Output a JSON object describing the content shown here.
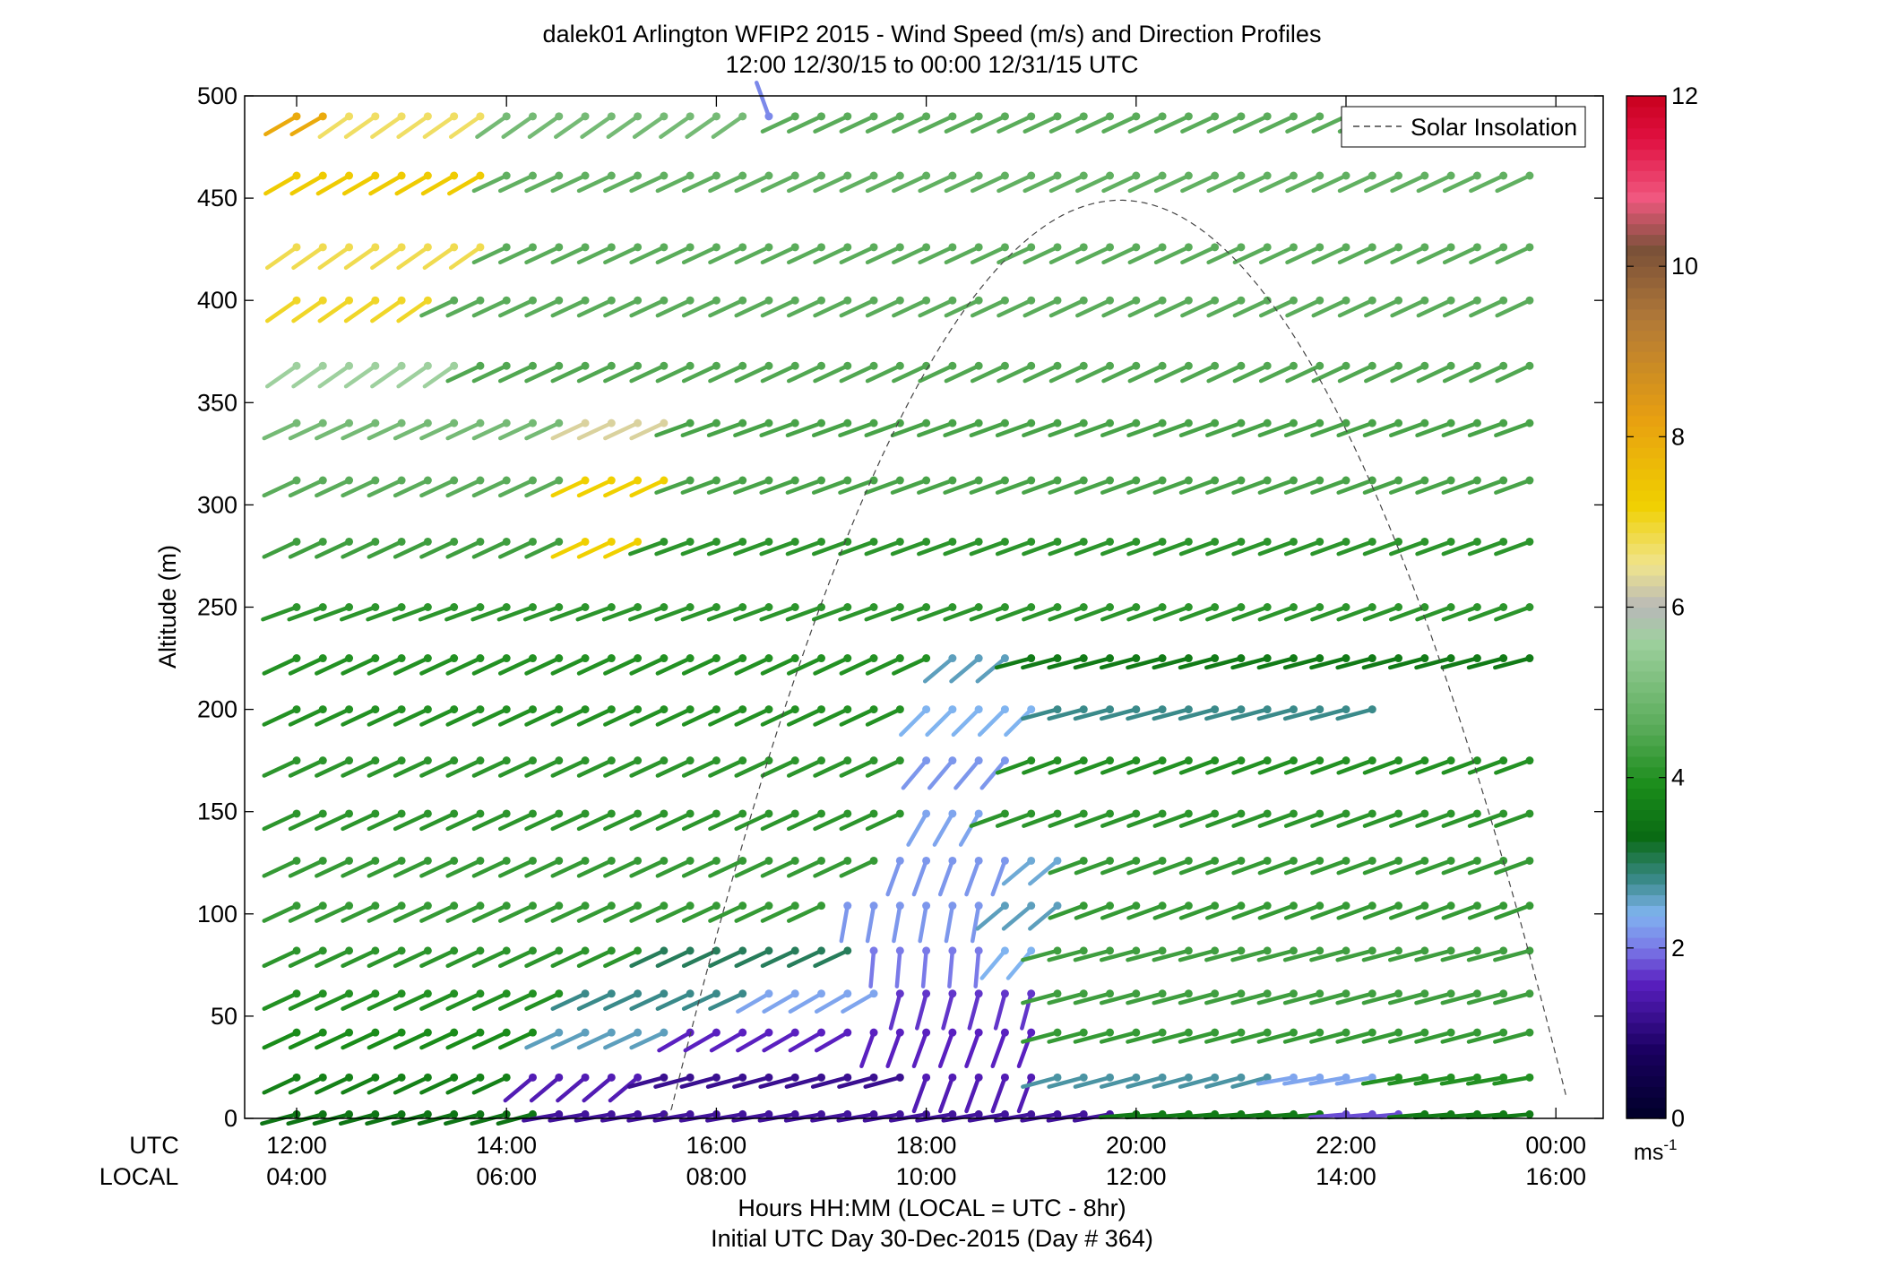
{
  "chart_data": {
    "type": "wind_barb_profile",
    "title": "dalek01 Arlington WFIP2 2015 - Wind Speed (m/s) and Direction Profiles",
    "subtitle": "12:00 12/30/15 to 00:00 12/31/15  UTC",
    "ylabel": "Altitude (m)",
    "xlabel_line1": "Hours HH:MM  (LOCAL = UTC - 8hr)",
    "xlabel_line2": "Initial UTC Day 30-Dec-2015 (Day # 364)",
    "row_labels": {
      "utc": "UTC",
      "local": "LOCAL"
    },
    "ylim": [
      0,
      500
    ],
    "yticks": [
      "0",
      "50",
      "100",
      "150",
      "200",
      "250",
      "300",
      "350",
      "400",
      "450",
      "500"
    ],
    "xlim_hours": [
      11.55,
      24.4
    ],
    "xticks_utc": [
      {
        "hour": 12,
        "label": "12:00"
      },
      {
        "hour": 14,
        "label": "14:00"
      },
      {
        "hour": 16,
        "label": "16:00"
      },
      {
        "hour": 18,
        "label": "18:00"
      },
      {
        "hour": 20,
        "label": "20:00"
      },
      {
        "hour": 22,
        "label": "22:00"
      },
      {
        "hour": 24,
        "label": "00:00"
      }
    ],
    "xticks_local": [
      "04:00",
      "06:00",
      "08:00",
      "10:00",
      "12:00",
      "14:00",
      "16:00"
    ],
    "legend": {
      "label": "Solar Insolation",
      "position": "top-right"
    },
    "solar_insolation": {
      "start_hour": 15.5,
      "end_hour": 24.1,
      "peak_hour": 19.85,
      "peak_altitude_m": 449
    },
    "colorbar": {
      "min": 0,
      "max": 12,
      "ticks": [
        "0",
        "2",
        "4",
        "6",
        "8",
        "10",
        "12"
      ],
      "unit": "ms",
      "unit_exponent": "-1",
      "stops": [
        {
          "v": 0.0,
          "color": "#000028"
        },
        {
          "v": 0.8,
          "color": "#1a0060"
        },
        {
          "v": 1.6,
          "color": "#5a20c0"
        },
        {
          "v": 2.0,
          "color": "#7a7ae8"
        },
        {
          "v": 2.4,
          "color": "#80b4f0"
        },
        {
          "v": 2.8,
          "color": "#3a8a8a"
        },
        {
          "v": 3.3,
          "color": "#0a6a14"
        },
        {
          "v": 3.9,
          "color": "#1a8c1a"
        },
        {
          "v": 4.6,
          "color": "#5aac5a"
        },
        {
          "v": 5.6,
          "color": "#9ed09e"
        },
        {
          "v": 6.0,
          "color": "#b8b8b8"
        },
        {
          "v": 6.5,
          "color": "#f0e48c"
        },
        {
          "v": 7.2,
          "color": "#f0d000"
        },
        {
          "v": 8.2,
          "color": "#e8a010"
        },
        {
          "v": 9.4,
          "color": "#b07838"
        },
        {
          "v": 10.2,
          "color": "#7a5038"
        },
        {
          "v": 10.8,
          "color": "#f05880"
        },
        {
          "v": 11.5,
          "color": "#e01040"
        },
        {
          "v": 12.0,
          "color": "#c8001e"
        }
      ]
    },
    "altitudes_m": [
      2,
      20,
      42,
      61,
      82,
      104,
      126,
      149,
      175,
      200,
      225,
      250,
      282,
      312,
      340,
      368,
      400,
      426,
      461,
      490
    ],
    "time_start_hour": 12.0,
    "time_step_hours": 0.25,
    "barbs_per_row": 48,
    "wind_notes": "Wind speed in m/s and direction in degrees (meteorological, direction wind blows from), estimated from barb colour and orientation. Speeds below are listed by altitude band and hour range.",
    "wind_regime": [
      {
        "alt_max": 10,
        "segments": [
          [
            12.0,
            14.5,
            3.5,
            255
          ],
          [
            14.5,
            20.0,
            1.3,
            260
          ],
          [
            20.0,
            22.0,
            3.6,
            265
          ],
          [
            22.0,
            22.6,
            1.8,
            265
          ],
          [
            22.6,
            24.4,
            3.6,
            265
          ]
        ]
      },
      {
        "alt_max": 30,
        "segments": [
          [
            12.0,
            14.2,
            3.7,
            245
          ],
          [
            14.2,
            15.5,
            1.5,
            230
          ],
          [
            15.5,
            18.0,
            1.2,
            255
          ],
          [
            18.0,
            19.1,
            1.5,
            200
          ],
          [
            19.1,
            21.5,
            2.7,
            255
          ],
          [
            21.5,
            22.5,
            2.3,
            260
          ],
          [
            22.5,
            24.4,
            4.0,
            260
          ]
        ]
      },
      {
        "alt_max": 50,
        "segments": [
          [
            12.0,
            14.4,
            3.9,
            245
          ],
          [
            14.4,
            15.7,
            2.6,
            245
          ],
          [
            15.7,
            17.5,
            1.6,
            240
          ],
          [
            17.5,
            19.2,
            1.6,
            200
          ],
          [
            19.2,
            24.4,
            4.2,
            255
          ]
        ]
      },
      {
        "alt_max": 70,
        "segments": [
          [
            12.0,
            14.6,
            4.0,
            245
          ],
          [
            14.6,
            16.4,
            2.8,
            245
          ],
          [
            16.4,
            17.6,
            2.3,
            240
          ],
          [
            17.6,
            19.2,
            1.7,
            195
          ],
          [
            19.2,
            24.4,
            4.3,
            255
          ]
        ]
      },
      {
        "alt_max": 90,
        "segments": [
          [
            12.0,
            15.5,
            4.1,
            245
          ],
          [
            15.5,
            17.5,
            3.0,
            245
          ],
          [
            17.5,
            18.6,
            2.0,
            185
          ],
          [
            18.6,
            19.2,
            2.4,
            220
          ],
          [
            19.2,
            24.4,
            4.3,
            255
          ]
        ]
      },
      {
        "alt_max": 115,
        "segments": [
          [
            12.0,
            17.2,
            4.2,
            245
          ],
          [
            17.2,
            18.7,
            2.2,
            190
          ],
          [
            18.7,
            19.3,
            2.6,
            230
          ],
          [
            19.3,
            24.4,
            4.2,
            250
          ]
        ]
      },
      {
        "alt_max": 140,
        "segments": [
          [
            12.0,
            17.6,
            4.2,
            245
          ],
          [
            17.6,
            18.8,
            2.2,
            200
          ],
          [
            18.8,
            19.3,
            2.5,
            230
          ],
          [
            19.3,
            24.4,
            4.2,
            250
          ]
        ]
      },
      {
        "alt_max": 165,
        "segments": [
          [
            12.0,
            17.8,
            4.1,
            245
          ],
          [
            17.8,
            18.6,
            2.3,
            210
          ],
          [
            18.6,
            24.4,
            4.1,
            250
          ]
        ]
      },
      {
        "alt_max": 190,
        "segments": [
          [
            12.0,
            17.8,
            4.1,
            245
          ],
          [
            17.8,
            19.0,
            2.2,
            220
          ],
          [
            19.0,
            24.4,
            4.0,
            250
          ]
        ]
      },
      {
        "alt_max": 212,
        "segments": [
          [
            12.0,
            17.8,
            4.0,
            245
          ],
          [
            17.8,
            19.2,
            2.4,
            225
          ],
          [
            19.2,
            22.5,
            2.8,
            255
          ],
          [
            22.5,
            24.0,
            0.0,
            0
          ],
          [
            24.0,
            24.4,
            3.7,
            240
          ]
        ]
      },
      {
        "alt_max": 237,
        "segments": [
          [
            12.0,
            18.2,
            4.0,
            245
          ],
          [
            18.2,
            19.0,
            2.6,
            230
          ],
          [
            19.0,
            24.4,
            3.6,
            255
          ]
        ]
      },
      {
        "alt_max": 265,
        "segments": [
          [
            12.0,
            24.4,
            4.1,
            250
          ]
        ]
      },
      {
        "alt_max": 296,
        "segments": [
          [
            12.0,
            14.7,
            4.3,
            245
          ],
          [
            14.7,
            15.4,
            7.2,
            245
          ],
          [
            15.4,
            24.4,
            4.1,
            250
          ]
        ]
      },
      {
        "alt_max": 326,
        "segments": [
          [
            12.0,
            14.7,
            4.6,
            245
          ],
          [
            14.7,
            15.7,
            7.2,
            245
          ],
          [
            15.7,
            24.4,
            4.4,
            250
          ]
        ]
      },
      {
        "alt_max": 354,
        "segments": [
          [
            12.0,
            14.7,
            5.0,
            245
          ],
          [
            14.7,
            15.7,
            6.3,
            245
          ],
          [
            15.7,
            24.4,
            4.4,
            250
          ]
        ]
      },
      {
        "alt_max": 384,
        "segments": [
          [
            12.0,
            13.6,
            5.6,
            235
          ],
          [
            13.6,
            24.4,
            4.5,
            245
          ]
        ]
      },
      {
        "alt_max": 413,
        "segments": [
          [
            12.0,
            13.3,
            7.0,
            235
          ],
          [
            13.3,
            24.4,
            4.6,
            245
          ]
        ]
      },
      {
        "alt_max": 443,
        "segments": [
          [
            12.0,
            13.8,
            6.8,
            235
          ],
          [
            13.8,
            24.4,
            4.6,
            245
          ]
        ]
      },
      {
        "alt_max": 475,
        "segments": [
          [
            12.0,
            14.0,
            7.3,
            240
          ],
          [
            14.0,
            24.4,
            4.7,
            245
          ]
        ]
      },
      {
        "alt_max": 500,
        "segments": [
          [
            12.0,
            12.5,
            8.0,
            240
          ],
          [
            12.5,
            13.8,
            6.7,
            235
          ],
          [
            13.8,
            16.4,
            5.0,
            235
          ],
          [
            16.4,
            16.6,
            2.1,
            340
          ],
          [
            16.6,
            24.4,
            4.6,
            245
          ]
        ]
      }
    ]
  }
}
